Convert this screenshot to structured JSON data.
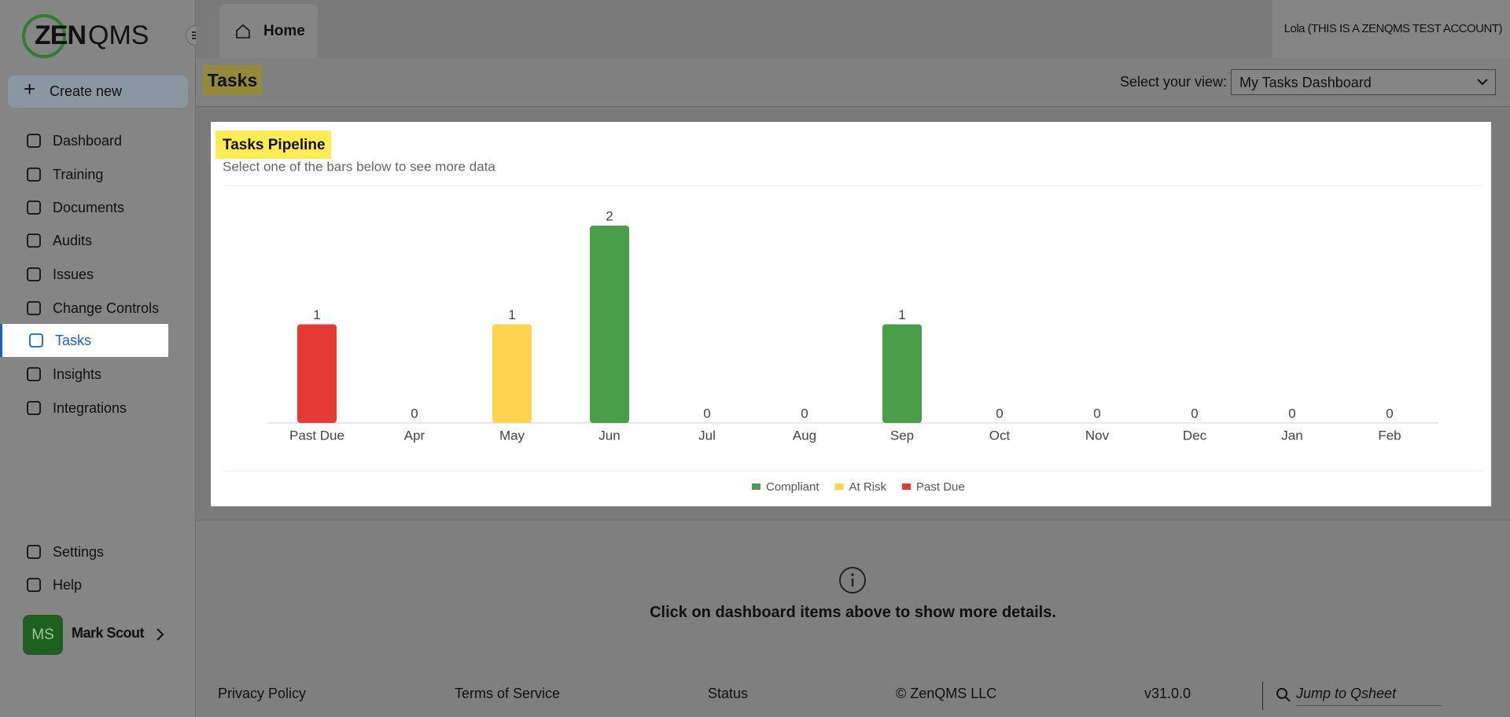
{
  "logo": {
    "part1": "ZEN",
    "part2": "QMS"
  },
  "create_button": "Create new",
  "nav": [
    "Dashboard",
    "Training",
    "Documents",
    "Audits",
    "Issues",
    "Change Controls",
    "Tasks",
    "Insights",
    "Integrations"
  ],
  "bottom_nav": [
    "Settings",
    "Help"
  ],
  "user": {
    "initials": "MS",
    "name": "Mark Scout"
  },
  "tab": "Home",
  "account": "Lola (THIS IS A ZENQMS TEST ACCOUNT)",
  "page_title": "Tasks",
  "view_label": "Select your view:",
  "view_value": "My Tasks Dashboard",
  "chart_data": {
    "type": "bar",
    "title": "Tasks Pipeline",
    "subtitle": "Select one of the bars below to see more data",
    "categories": [
      "Past Due",
      "Apr",
      "May",
      "Jun",
      "Jul",
      "Aug",
      "Sep",
      "Oct",
      "Nov",
      "Dec",
      "Jan",
      "Feb"
    ],
    "series": [
      {
        "name": "Compliant",
        "color": "#4a9e4a",
        "values": [
          null,
          0,
          null,
          2,
          0,
          0,
          1,
          0,
          0,
          0,
          0,
          0
        ]
      },
      {
        "name": "At Risk",
        "color": "#ffd54f",
        "values": [
          null,
          null,
          1,
          null,
          null,
          null,
          null,
          null,
          null,
          null,
          null,
          null
        ]
      },
      {
        "name": "Past Due",
        "color": "#e53935",
        "values": [
          1,
          null,
          null,
          null,
          null,
          null,
          null,
          null,
          null,
          null,
          null,
          null
        ]
      }
    ]
  },
  "details_message": "Click on dashboard items above to show more details.",
  "footer": {
    "links": [
      "Privacy Policy",
      "Terms of Service",
      "Status",
      "© ZenQMS LLC",
      "v31.0.0"
    ],
    "search_placeholder": "Jump to Qsheet"
  }
}
